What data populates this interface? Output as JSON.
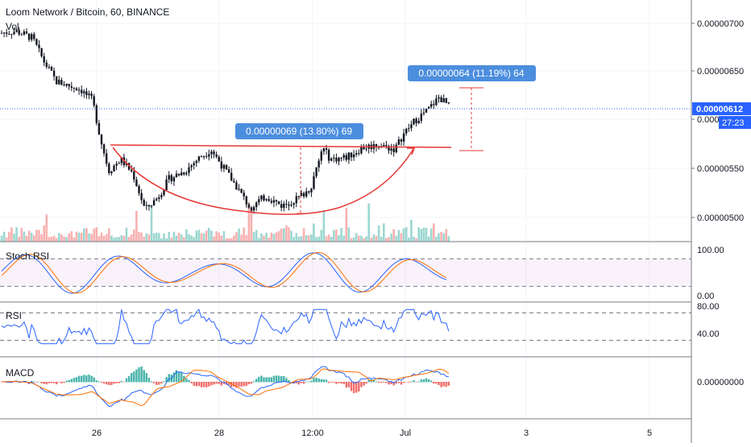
{
  "header": {
    "title": "Loom Network / Bitcoin, 60, BINANCE",
    "volume_label": "Vol"
  },
  "colors": {
    "up": "#26a69a",
    "down": "#ef5350",
    "accent": "#2962ff",
    "measure": "#4c8ede",
    "pattern": "#e53935",
    "k_line": "#2962ff",
    "d_line": "#ff6d00"
  },
  "price_axis": {
    "ticks": [
      "0.00000700",
      "0.00000650",
      "0.00000600",
      "0.00000550",
      "0.00000500"
    ],
    "tick_values": [
      7e-06,
      6.5e-06,
      6e-06,
      5.5e-06,
      5e-06
    ],
    "last_price": "0.00000612",
    "countdown": "27:23"
  },
  "time_axis": {
    "labels": [
      "26",
      "28",
      "12:00",
      "Jul",
      "3",
      "5"
    ]
  },
  "annotations": {
    "measure_1": "0.00000069 (13.80%) 69",
    "measure_2": "0.00000064 (11.19%) 64"
  },
  "stoch_rsi": {
    "label": "Stoch RSI",
    "ticks": [
      "100.00",
      "0.00"
    ],
    "upper_band": 80,
    "lower_band": 20
  },
  "rsi": {
    "label": "RSI",
    "ticks": [
      "80.00",
      "40.00"
    ],
    "upper_band": 70,
    "lower_band": 30
  },
  "macd": {
    "label": "MACD",
    "ticks": [
      "0.00000000"
    ]
  },
  "chart_data": {
    "type": "candlestick",
    "title": "Loom Network / Bitcoin, 60, BINANCE",
    "ylim": [
      4.8e-06,
      7.2e-06
    ],
    "key_points": [
      {
        "x": "25",
        "close": 6.9e-06
      },
      {
        "x": "25 late",
        "close": 6.4e-06
      },
      {
        "x": "26 early",
        "close": 5.55e-06
      },
      {
        "x": "27",
        "close": 5.05e-06
      },
      {
        "x": "27 late",
        "close": 5.7e-06
      },
      {
        "x": "28",
        "close": 5.6e-06
      },
      {
        "x": "28 late",
        "close": 5.08e-06
      },
      {
        "x": "12:00",
        "close": 5.3e-06
      },
      {
        "x": "30",
        "close": 5.7e-06
      },
      {
        "x": "Jul",
        "close": 5.9e-06
      },
      {
        "x": "Jul late",
        "close": 6.12e-06
      }
    ],
    "last_price": 6.12e-06
  }
}
